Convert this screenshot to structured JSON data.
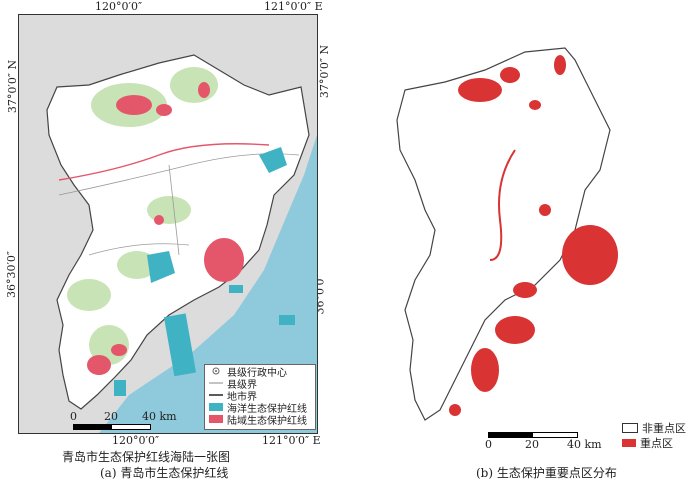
{
  "panel_a": {
    "lon_labels": [
      "120°0′0″",
      "121°0′0″ E"
    ],
    "lat_labels": [
      "37°0′0″ N",
      "36°30′0″",
      "36°0′0″"
    ],
    "map_title": "青岛市生态保护红线海陆一张图",
    "caption": "(a) 青岛市生态保护红线",
    "legend": [
      {
        "label": "县级行政中心",
        "icon": "county-center-icon"
      },
      {
        "label": "县级界",
        "icon": "county-boundary-line"
      },
      {
        "label": "地市界",
        "icon": "city-boundary-line"
      },
      {
        "label": "海洋生态保护红线",
        "color": "#3fb3c3"
      },
      {
        "label": "陆域生态保护红线",
        "color": "#e4566a"
      }
    ],
    "scale": {
      "ticks": [
        "0",
        "20",
        "40 km"
      ]
    },
    "colors": {
      "sea": "#8ec9dc",
      "land": "#ffffff",
      "outside": "#dcdcdc",
      "forest": "#c8e3b5",
      "marine_redline": "#3fb3c3",
      "land_redline": "#e4566a"
    }
  },
  "panel_b": {
    "caption": "(b) 生态保护重要点区分布",
    "legend": [
      {
        "label": "非重点区",
        "color": "#ffffff"
      },
      {
        "label": "重点区",
        "color": "#d93333"
      }
    ],
    "scale": {
      "ticks": [
        "0",
        "20",
        "40 km"
      ]
    }
  }
}
